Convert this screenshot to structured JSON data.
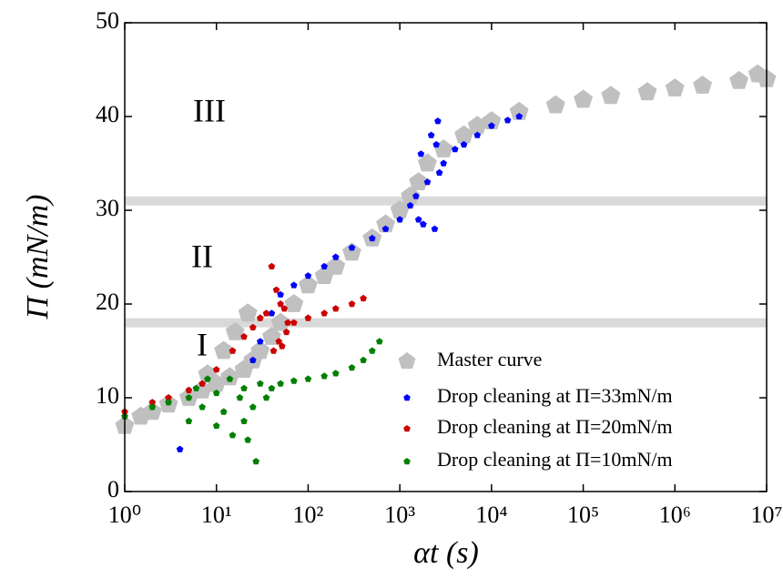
{
  "chart_data": {
    "type": "scatter",
    "xlabel": "αt (s)",
    "ylabel": "Π (mN/m)",
    "xscale": "log",
    "xlim": [
      1,
      10000000
    ],
    "xticks": [
      {
        "value": 1,
        "label": "10⁰"
      },
      {
        "value": 10,
        "label": "10¹"
      },
      {
        "value": 100,
        "label": "10²"
      },
      {
        "value": 1000,
        "label": "10³"
      },
      {
        "value": 10000,
        "label": "10⁴"
      },
      {
        "value": 100000,
        "label": "10⁵"
      },
      {
        "value": 1000000,
        "label": "10⁶"
      },
      {
        "value": 10000000,
        "label": "10⁷"
      }
    ],
    "ylim": [
      0,
      50
    ],
    "yticks": [
      0,
      10,
      20,
      30,
      40,
      50
    ],
    "hlines": [
      31,
      18
    ],
    "hline_color": "#d9d9d9",
    "annotations": [
      "III",
      "II",
      "I"
    ],
    "legend": "lower right",
    "series": [
      {
        "name": "Master curve",
        "color": "#c0c0c0",
        "x": [
          1,
          1.5,
          2,
          3,
          5,
          7,
          10,
          14,
          20,
          25,
          30,
          40,
          50,
          70,
          100,
          150,
          200,
          300,
          500,
          700,
          1000,
          1300,
          1600,
          2000,
          3000,
          5000,
          7000,
          10000,
          20000,
          50000,
          100000,
          200000,
          500000,
          1000000,
          2000000,
          5000000,
          8000000,
          10000000,
          8,
          12,
          16,
          22
        ],
        "y": [
          7,
          8,
          8.5,
          9.3,
          10,
          10.8,
          11.5,
          12.2,
          13,
          14,
          15,
          16.5,
          18,
          20,
          22,
          23,
          24,
          25.5,
          27,
          28.5,
          30,
          31.5,
          33,
          35,
          36.5,
          38,
          39,
          39.5,
          40.5,
          41.2,
          41.8,
          42.2,
          42.6,
          43,
          43.3,
          43.8,
          44.5,
          44,
          12.5,
          15,
          17,
          19
        ]
      },
      {
        "name": "Drop cleaning at Π=33mN/m",
        "color": "#0000ff",
        "x": [
          4,
          25,
          30,
          40,
          50,
          70,
          100,
          150,
          200,
          300,
          500,
          700,
          1000,
          1300,
          1500,
          1600,
          1700,
          1800,
          2000,
          2200,
          2400,
          2500,
          2600,
          2700,
          3000,
          4000,
          5000,
          7000,
          10000,
          15000,
          20000
        ],
        "y": [
          4.5,
          14,
          16,
          19,
          21,
          22,
          23,
          24,
          25,
          26,
          27,
          28,
          29,
          30.5,
          31.5,
          29,
          36,
          28.5,
          33,
          38,
          28,
          37,
          39.5,
          34,
          35,
          36.5,
          37,
          38,
          39,
          39.6,
          40
        ]
      },
      {
        "name": "Drop cleaning at Π=20mN/m",
        "color": "#cc0000",
        "x": [
          1,
          2,
          3,
          5,
          7,
          10,
          15,
          20,
          25,
          30,
          35,
          40,
          42,
          45,
          48,
          50,
          52,
          55,
          58,
          60,
          70,
          100,
          150,
          200,
          300,
          400
        ],
        "y": [
          8.5,
          9.5,
          10,
          10.8,
          11.5,
          13,
          15,
          16.5,
          17.5,
          18.5,
          19,
          24,
          15,
          21.5,
          16,
          20,
          15.5,
          19.5,
          17,
          18,
          18,
          18.5,
          19,
          19.5,
          20,
          20.6
        ]
      },
      {
        "name": "Drop cleaning at Π=10mN/m",
        "color": "#008000",
        "x": [
          1,
          2,
          3,
          5,
          5,
          6,
          7,
          8,
          10,
          10,
          12,
          14,
          15,
          18,
          20,
          20,
          22,
          25,
          27,
          30,
          35,
          40,
          50,
          70,
          100,
          150,
          200,
          300,
          400,
          500,
          600
        ],
        "y": [
          8,
          9,
          9.5,
          10,
          7.5,
          11,
          9,
          12,
          10.5,
          7,
          8.5,
          12,
          6,
          10,
          7.5,
          11,
          5.5,
          9,
          3.2,
          11.5,
          10,
          11,
          11.5,
          11.8,
          12,
          12.3,
          12.6,
          13.2,
          14,
          15,
          16
        ]
      }
    ]
  }
}
